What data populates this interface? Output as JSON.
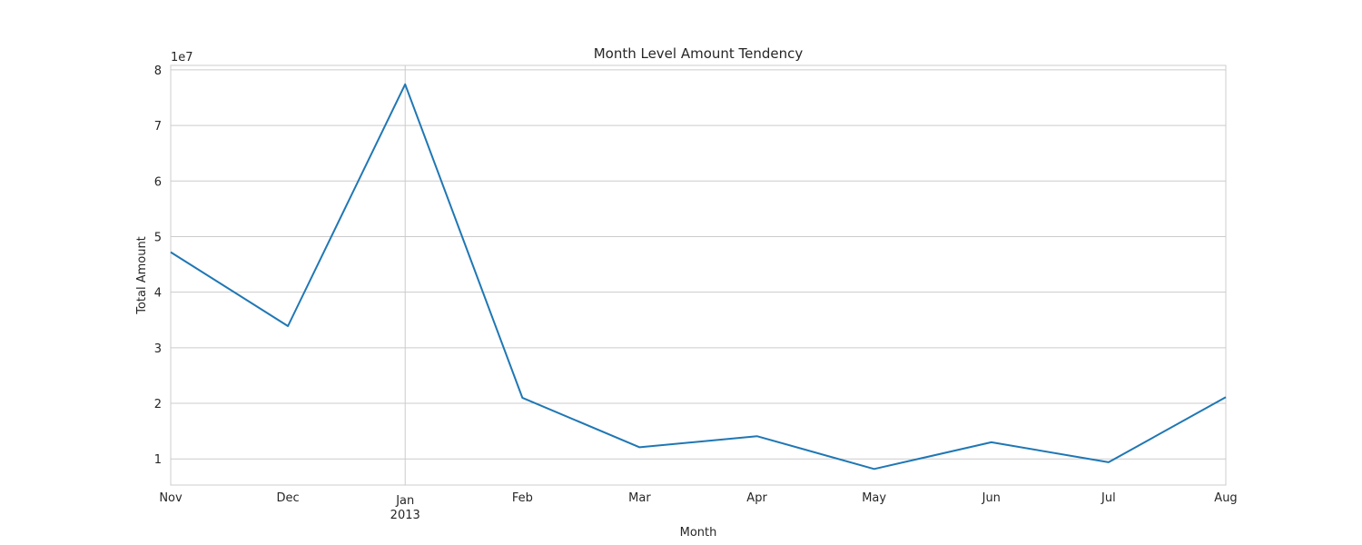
{
  "chart_data": {
    "type": "line",
    "title": "Month Level Amount Tendency",
    "xlabel": "Month",
    "ylabel": "Total Amount",
    "y_multiplier_label": "1e7",
    "x": [
      "2012-11",
      "2012-12",
      "2013-01",
      "2013-02",
      "2013-03",
      "2013-04",
      "2013-05",
      "2013-06",
      "2013-07",
      "2013-08"
    ],
    "x_tick_labels": [
      "Nov",
      "Dec",
      "Jan",
      "Feb",
      "Mar",
      "Apr",
      "May",
      "Jun",
      "Jul",
      "Aug"
    ],
    "x_tick_sublabels": [
      "",
      "",
      "2013",
      "",
      "",
      "",
      "",
      "",
      "",
      ""
    ],
    "series": [
      {
        "values": [
          47200000,
          33900000,
          77400000,
          21000000,
          12100000,
          14100000,
          8200000,
          13000000,
          9400000,
          21100000
        ],
        "color": "#1f77b4"
      }
    ],
    "yticks": [
      1,
      2,
      3,
      4,
      5,
      6,
      7,
      8
    ],
    "ylim": [
      5300000,
      80800000
    ],
    "grid": true,
    "legend": "none"
  }
}
